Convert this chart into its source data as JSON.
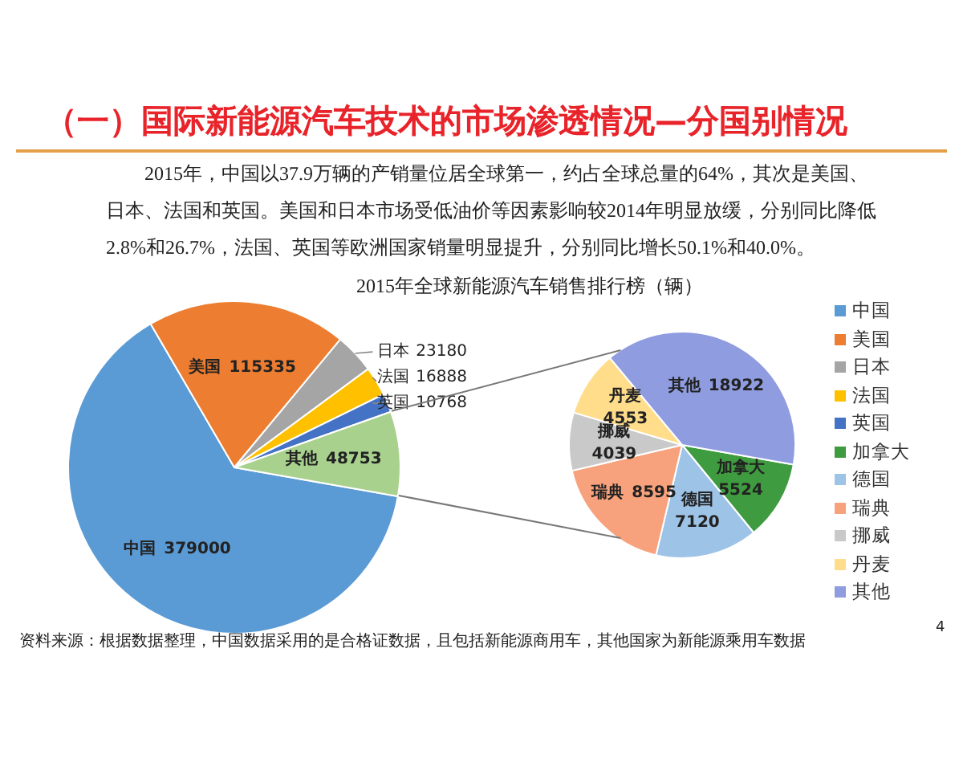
{
  "chart_data": [
    {
      "type": "pie",
      "title": "2015年全球新能源汽车销售排行榜（辆）",
      "categories": [
        "中国",
        "美国",
        "日本",
        "法国",
        "英国",
        "其他"
      ],
      "values": [
        379000,
        115335,
        23180,
        16888,
        10768,
        48753
      ],
      "colors": [
        "#5b9bd5",
        "#ed7d31",
        "#a5a5a5",
        "#ffc000",
        "#4472c4",
        "#a9d18e"
      ],
      "data_labels": true,
      "legend": "right",
      "annotations": [
        "（一）国际新能源汽车技术的市场渗透情况—分国别情况",
        "2015年，中国以37.9万辆的产销量位居全球第一，约占全球总量的64%，其次是美国、日本、法国和英国。美国和日本市场受低油价等因素影响较2014年明显放缓，分别同比降低2.8%和26.7%，法国、英国等欧洲国家销量明显提升，分别同比增长50.1%和40.0%。",
        "资料来源：根据数据整理，中国数据采用的是合格证数据，且包括新能源商用车，其他国家为新能源乘用车数据",
        "4"
      ]
    },
    {
      "type": "pie",
      "categories": [
        "加拿大",
        "德国",
        "瑞典",
        "挪威",
        "丹麦",
        "其他"
      ],
      "values": [
        5524,
        7120,
        8595,
        4039,
        4553,
        18922
      ],
      "colors": [
        "#3f9b3f",
        "#9dc3e6",
        "#f7a27c",
        "#c9c9c9",
        "#ffdd8a",
        "#8f9ce0"
      ],
      "data_labels": true,
      "legend": "right"
    }
  ]
}
